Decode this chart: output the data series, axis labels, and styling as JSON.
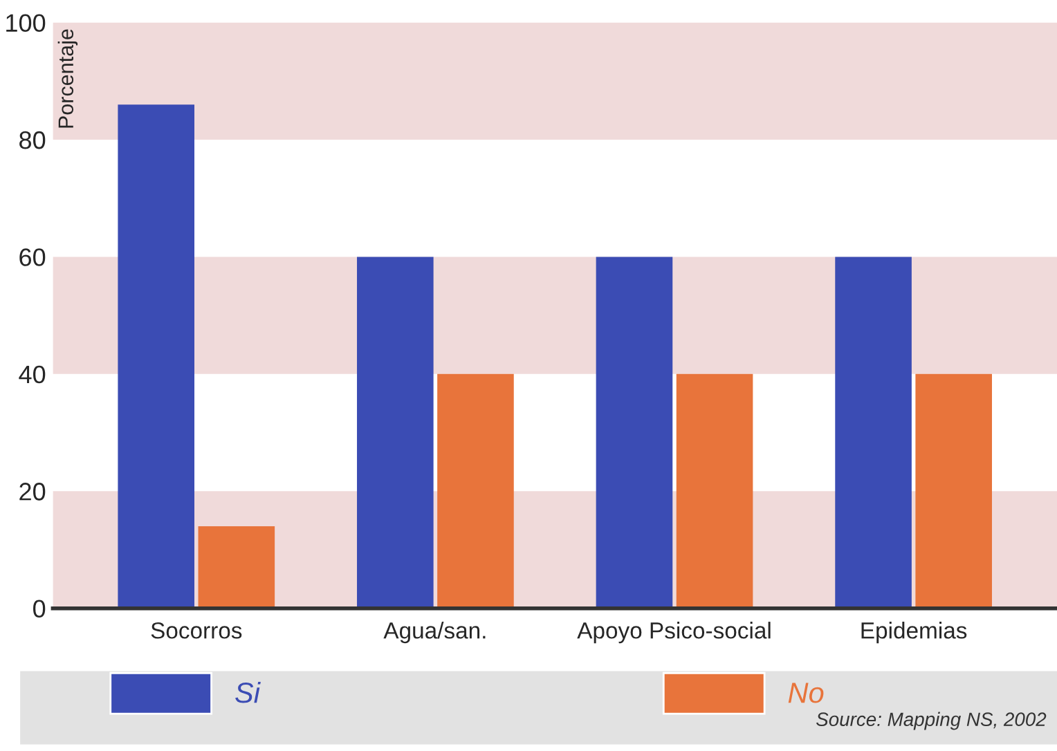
{
  "chart_data": {
    "type": "bar",
    "categories": [
      "Socorros",
      "Agua/san.",
      "Apoyo Psico-social",
      "Epidemias"
    ],
    "series": [
      {
        "name": "Si",
        "color": "#3b4cb4",
        "values": [
          86,
          60,
          60,
          60
        ]
      },
      {
        "name": "No",
        "color": "#e8743b",
        "values": [
          14,
          40,
          40,
          40
        ]
      }
    ],
    "ylabel": "Porcentaje",
    "ylim": [
      0,
      100
    ],
    "yticks": [
      0,
      20,
      40,
      60,
      80,
      100
    ],
    "grid": false,
    "legend": "bottom",
    "bands": [
      {
        "axis": "y",
        "from": 0,
        "to": 20,
        "color": "#f0dada"
      },
      {
        "axis": "y",
        "from": 40,
        "to": 60,
        "color": "#f0dada"
      },
      {
        "axis": "y",
        "from": 80,
        "to": 100,
        "color": "#f0dada"
      }
    ],
    "annotations": [
      "Source: Mapping NS, 2002"
    ]
  }
}
